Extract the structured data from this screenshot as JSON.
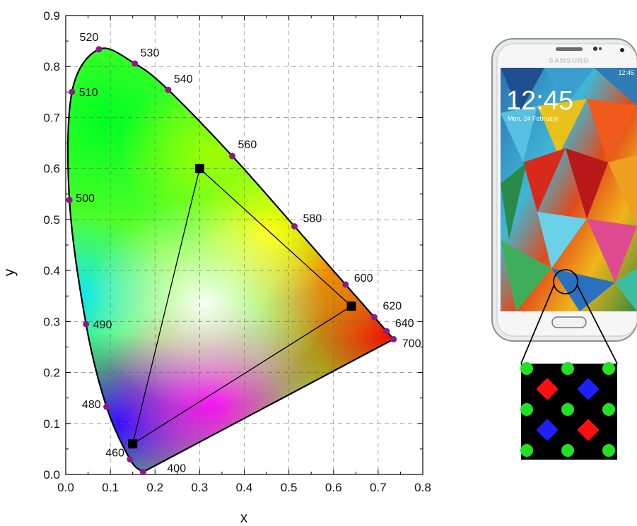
{
  "chart_data": {
    "type": "scatter",
    "xlabel": "x",
    "ylabel": "y",
    "xlim": [
      0.0,
      0.8
    ],
    "ylim": [
      0.0,
      0.9
    ],
    "x_ticks": [
      "0.0",
      "0.1",
      "0.2",
      "0.3",
      "0.4",
      "0.5",
      "0.6",
      "0.7",
      "0.8"
    ],
    "y_ticks": [
      "0.0",
      "0.1",
      "0.2",
      "0.3",
      "0.4",
      "0.5",
      "0.6",
      "0.7",
      "0.8",
      "0.9"
    ],
    "grid": true,
    "spectral_locus": [
      {
        "label": "400",
        "x": 0.1733,
        "y": 0.0048
      },
      {
        "label": "460",
        "x": 0.144,
        "y": 0.0297
      },
      {
        "label": "480",
        "x": 0.0913,
        "y": 0.1327
      },
      {
        "label": "490",
        "x": 0.0454,
        "y": 0.295
      },
      {
        "label": "500",
        "x": 0.0082,
        "y": 0.5384
      },
      {
        "label": "510",
        "x": 0.0139,
        "y": 0.7502
      },
      {
        "label": "520",
        "x": 0.0743,
        "y": 0.8338
      },
      {
        "label": "530",
        "x": 0.1547,
        "y": 0.8059
      },
      {
        "label": "540",
        "x": 0.2296,
        "y": 0.7543
      },
      {
        "label": "560",
        "x": 0.3731,
        "y": 0.6245
      },
      {
        "label": "580",
        "x": 0.5125,
        "y": 0.4866
      },
      {
        "label": "600",
        "x": 0.627,
        "y": 0.3725
      },
      {
        "label": "620",
        "x": 0.6915,
        "y": 0.3083
      },
      {
        "label": "640",
        "x": 0.719,
        "y": 0.2809
      },
      {
        "label": "700",
        "x": 0.7347,
        "y": 0.2653
      }
    ],
    "gamut_triangle": [
      {
        "x": 0.3,
        "y": 0.6
      },
      {
        "x": 0.64,
        "y": 0.33
      },
      {
        "x": 0.15,
        "y": 0.06
      }
    ],
    "colors": {
      "locus_marker": "#8a1a8a",
      "triangle_marker": "#000000",
      "outline": "#000000"
    }
  },
  "phone": {
    "brand": "SAMSUNG",
    "time": "12:45",
    "date": "Mon, 24 February",
    "status_time": "12:45"
  },
  "subpixel_inset": {
    "colors": {
      "red": "#ff1010",
      "green": "#22e022",
      "blue": "#2020ff"
    }
  }
}
